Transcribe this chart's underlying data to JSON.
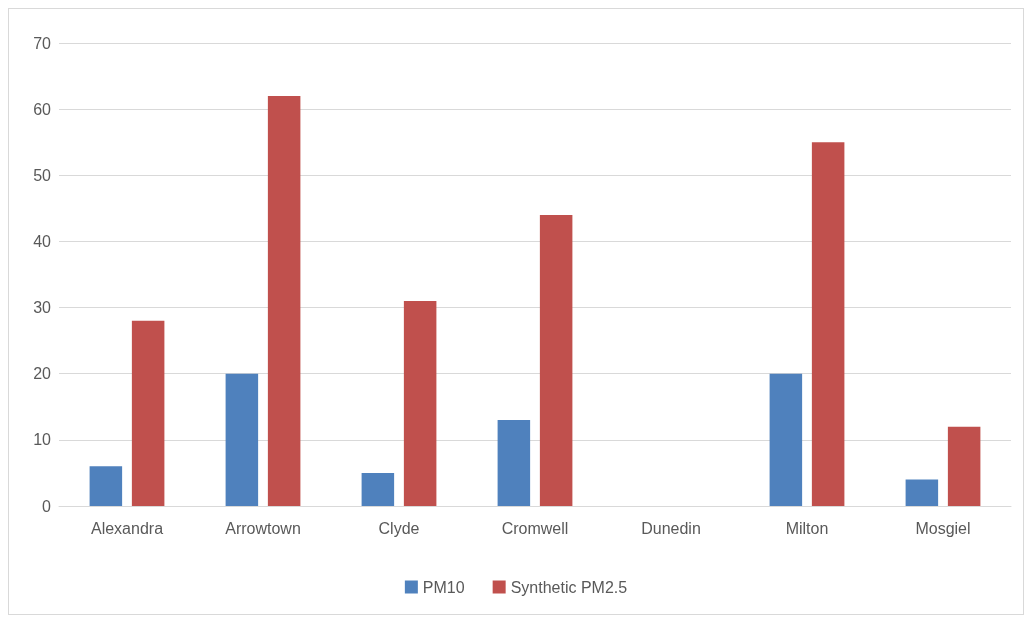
{
  "chart_data": {
    "type": "bar",
    "categories": [
      "Alexandra",
      "Arrowtown",
      "Clyde",
      "Cromwell",
      "Dunedin",
      "Milton",
      "Mosgiel"
    ],
    "series": [
      {
        "name": "PM10",
        "color": "#4f81bd",
        "values": [
          6,
          20,
          5,
          13,
          null,
          20,
          4
        ]
      },
      {
        "name": "Synthetic PM2.5",
        "color": "#c0504d",
        "values": [
          28,
          62,
          31,
          44,
          null,
          55,
          12
        ]
      }
    ],
    "ylim": [
      0,
      70
    ],
    "yticks": [
      0,
      10,
      20,
      30,
      40,
      50,
      60,
      70
    ],
    "grid": "y",
    "legend": "bottom"
  }
}
